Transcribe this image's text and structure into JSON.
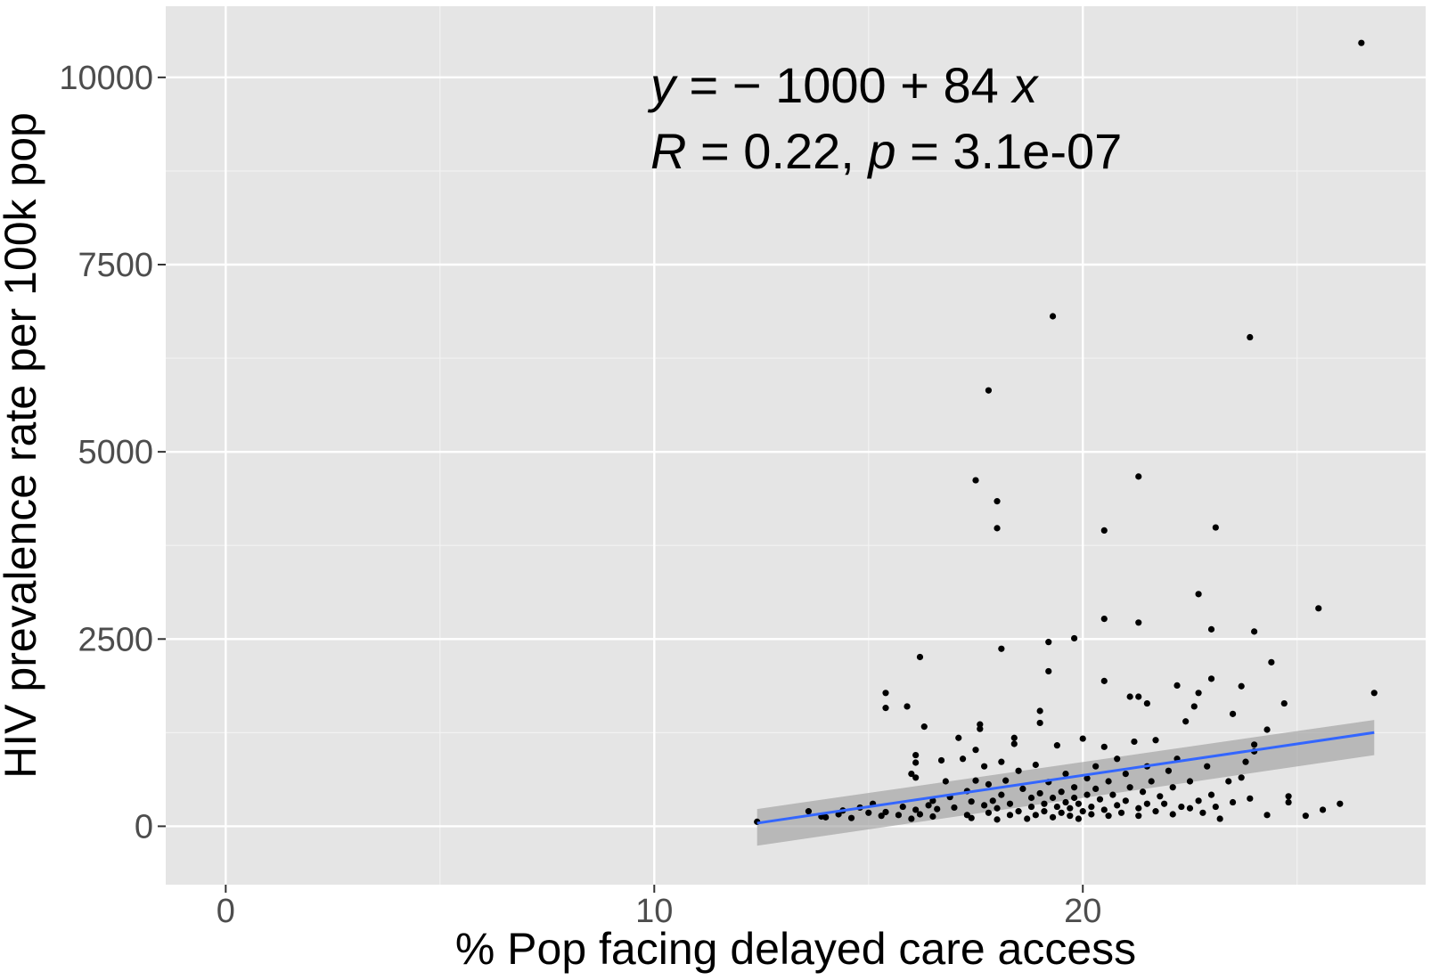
{
  "chart_data": {
    "type": "scatter",
    "xlabel": "% Pop facing delayed care access",
    "ylabel": "HIV prevalence rate per 100k pop",
    "xlim": [
      -1.4,
      28
    ],
    "ylim": [
      -780,
      10950
    ],
    "x_ticks": [
      0,
      10,
      20
    ],
    "x_tick_labels": [
      "0",
      "10",
      "20"
    ],
    "y_ticks": [
      0,
      2500,
      5000,
      7500,
      10000
    ],
    "y_tick_labels": [
      "0",
      "2500",
      "5000",
      "7500",
      "10000"
    ],
    "grid": true,
    "annotation": {
      "line1": {
        "y": "y",
        "eq": " = ",
        "minus": "−",
        "intercept": " 1000 ",
        "plus": "+",
        "slope": " 84 ",
        "x": "x"
      },
      "line2": {
        "R": "R",
        "r_part": " = 0.22, ",
        "p": "p",
        "p_part": " = 3.1e-07"
      }
    },
    "fit": {
      "intercept": -1000,
      "slope": 84,
      "x_range": [
        12.4,
        26.8
      ],
      "ci_lower": [
        -260,
        950
      ],
      "ci_upper": [
        230,
        1420
      ],
      "color": "#3366FF",
      "ci_color": "#999999"
    },
    "points": [
      [
        12.4,
        60
      ],
      [
        13.6,
        200
      ],
      [
        13.9,
        130
      ],
      [
        14.0,
        120
      ],
      [
        14.3,
        160
      ],
      [
        14.4,
        210
      ],
      [
        14.6,
        110
      ],
      [
        14.8,
        250
      ],
      [
        15.0,
        180
      ],
      [
        15.1,
        300
      ],
      [
        15.3,
        140
      ],
      [
        15.4,
        190
      ],
      [
        15.7,
        150
      ],
      [
        15.8,
        260
      ],
      [
        16.0,
        100
      ],
      [
        16.1,
        220
      ],
      [
        16.2,
        160
      ],
      [
        16.4,
        280
      ],
      [
        16.5,
        130
      ],
      [
        15.4,
        1780
      ],
      [
        15.4,
        1580
      ],
      [
        15.9,
        1600
      ],
      [
        16.0,
        700
      ],
      [
        16.1,
        850
      ],
      [
        16.1,
        650
      ],
      [
        16.1,
        950
      ],
      [
        16.2,
        2260
      ],
      [
        16.3,
        1330
      ],
      [
        16.5,
        340
      ],
      [
        16.6,
        230
      ],
      [
        16.7,
        880
      ],
      [
        16.8,
        600
      ],
      [
        16.9,
        390
      ],
      [
        17.0,
        250
      ],
      [
        17.1,
        1180
      ],
      [
        17.2,
        900
      ],
      [
        17.3,
        150
      ],
      [
        17.3,
        470
      ],
      [
        17.4,
        330
      ],
      [
        17.4,
        110
      ],
      [
        17.5,
        1020
      ],
      [
        17.5,
        610
      ],
      [
        17.6,
        1360
      ],
      [
        17.6,
        1300
      ],
      [
        17.7,
        800
      ],
      [
        17.7,
        280
      ],
      [
        17.8,
        180
      ],
      [
        17.8,
        560
      ],
      [
        17.9,
        340
      ],
      [
        18.0,
        90
      ],
      [
        18.0,
        240
      ],
      [
        18.1,
        420
      ],
      [
        18.1,
        860
      ],
      [
        18.2,
        610
      ],
      [
        18.3,
        150
      ],
      [
        18.3,
        300
      ],
      [
        18.4,
        1180
      ],
      [
        18.4,
        1100
      ],
      [
        18.5,
        740
      ],
      [
        18.5,
        200
      ],
      [
        18.6,
        500
      ],
      [
        18.7,
        100
      ],
      [
        18.8,
        380
      ],
      [
        18.8,
        260
      ],
      [
        18.9,
        820
      ],
      [
        18.9,
        150
      ],
      [
        19.0,
        440
      ],
      [
        19.0,
        1380
      ],
      [
        19.1,
        300
      ],
      [
        19.1,
        200
      ],
      [
        19.2,
        590
      ],
      [
        19.3,
        120
      ],
      [
        19.3,
        380
      ],
      [
        19.4,
        260
      ],
      [
        19.4,
        1080
      ],
      [
        19.5,
        180
      ],
      [
        19.5,
        460
      ],
      [
        19.6,
        320
      ],
      [
        19.6,
        700
      ],
      [
        19.7,
        140
      ],
      [
        19.7,
        240
      ],
      [
        19.8,
        380
      ],
      [
        19.8,
        520
      ],
      [
        19.9,
        100
      ],
      [
        19.9,
        300
      ],
      [
        20.0,
        200
      ],
      [
        20.0,
        1170
      ],
      [
        20.1,
        640
      ],
      [
        20.1,
        420
      ],
      [
        20.2,
        260
      ],
      [
        20.2,
        160
      ],
      [
        20.3,
        800
      ],
      [
        20.3,
        500
      ],
      [
        20.4,
        360
      ],
      [
        20.5,
        220
      ],
      [
        20.5,
        1060
      ],
      [
        20.6,
        140
      ],
      [
        20.6,
        600
      ],
      [
        20.7,
        420
      ],
      [
        20.8,
        280
      ],
      [
        20.8,
        900
      ],
      [
        20.9,
        180
      ],
      [
        21.0,
        700
      ],
      [
        21.0,
        340
      ],
      [
        21.1,
        520
      ],
      [
        21.2,
        1130
      ],
      [
        21.3,
        240
      ],
      [
        21.3,
        140
      ],
      [
        21.4,
        460
      ],
      [
        21.5,
        800
      ],
      [
        21.5,
        300
      ],
      [
        21.6,
        600
      ],
      [
        21.7,
        200
      ],
      [
        21.7,
        1150
      ],
      [
        21.8,
        400
      ],
      [
        21.9,
        300
      ],
      [
        22.0,
        740
      ],
      [
        22.1,
        160
      ],
      [
        22.1,
        520
      ],
      [
        22.2,
        900
      ],
      [
        22.3,
        260
      ],
      [
        22.4,
        1400
      ],
      [
        22.5,
        600
      ],
      [
        22.5,
        240
      ],
      [
        22.6,
        1600
      ],
      [
        22.7,
        340
      ],
      [
        22.8,
        180
      ],
      [
        22.9,
        800
      ],
      [
        23.0,
        420
      ],
      [
        23.1,
        260
      ],
      [
        23.2,
        100
      ],
      [
        23.4,
        600
      ],
      [
        23.5,
        320
      ],
      [
        17.8,
        5820
      ],
      [
        17.5,
        4620
      ],
      [
        18.0,
        4340
      ],
      [
        18.0,
        3980
      ],
      [
        19.3,
        6810
      ],
      [
        21.3,
        4670
      ],
      [
        20.5,
        3950
      ],
      [
        23.9,
        6530
      ],
      [
        23.1,
        3990
      ],
      [
        22.7,
        3100
      ],
      [
        20.5,
        2770
      ],
      [
        21.3,
        2720
      ],
      [
        23.0,
        2630
      ],
      [
        24.0,
        2600
      ],
      [
        25.5,
        2910
      ],
      [
        18.1,
        2370
      ],
      [
        19.2,
        2460
      ],
      [
        19.8,
        2510
      ],
      [
        19.2,
        2070
      ],
      [
        20.5,
        1940
      ],
      [
        21.1,
        1730
      ],
      [
        21.3,
        1730
      ],
      [
        22.2,
        1880
      ],
      [
        22.7,
        1780
      ],
      [
        23.0,
        1970
      ],
      [
        23.5,
        1500
      ],
      [
        23.7,
        1870
      ],
      [
        24.4,
        2190
      ],
      [
        24.7,
        1640
      ],
      [
        26.8,
        1780
      ],
      [
        19.0,
        1540
      ],
      [
        21.5,
        1640
      ],
      [
        24.0,
        1090
      ],
      [
        23.8,
        860
      ],
      [
        24.3,
        1290
      ],
      [
        23.9,
        370
      ],
      [
        24.3,
        150
      ],
      [
        24.8,
        400
      ],
      [
        24.8,
        320
      ],
      [
        25.2,
        140
      ],
      [
        25.6,
        220
      ],
      [
        26.0,
        300
      ],
      [
        24.0,
        1000
      ],
      [
        23.7,
        650
      ],
      [
        26.5,
        10460
      ]
    ],
    "point_color": "#000000"
  }
}
